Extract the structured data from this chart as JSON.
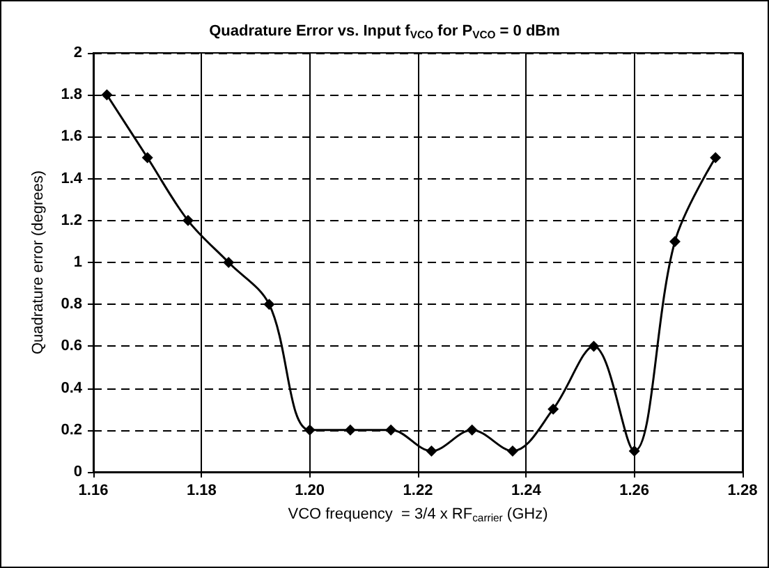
{
  "chart_data": {
    "type": "line",
    "title": "Quadrature Error vs. Input f$_{VCO}$ for P$_{VCO}$ = 0 dBm",
    "xlabel": "VCO frequency  = 3/4 x RF$_{carrier}$ (GHz)",
    "ylabel": "Quadrature error (degrees)",
    "x": [
      1.1625,
      1.17,
      1.1775,
      1.185,
      1.1925,
      1.2,
      1.2075,
      1.215,
      1.2225,
      1.23,
      1.2375,
      1.245,
      1.2525,
      1.26,
      1.2675,
      1.275
    ],
    "series": [
      {
        "color": "#000000",
        "values": [
          1.8,
          1.5,
          1.2,
          1.0,
          0.8,
          0.2,
          0.2,
          0.2,
          0.1,
          0.2,
          0.1,
          0.3,
          0.6,
          0.1,
          1.1,
          1.5
        ]
      }
    ],
    "xlim": [
      1.16,
      1.28
    ],
    "xticks": [
      {
        "value": 1.16,
        "label": "1.16"
      },
      {
        "value": 1.18,
        "label": "1.18"
      },
      {
        "value": 1.2,
        "label": "1.20"
      },
      {
        "value": 1.22,
        "label": "1.22"
      },
      {
        "value": 1.24,
        "label": "1.24"
      },
      {
        "value": 1.26,
        "label": "1.26"
      },
      {
        "value": 1.28,
        "label": "1.28"
      }
    ],
    "ylim": [
      0,
      2
    ],
    "yticks": [
      0,
      0.2,
      0.4,
      0.6,
      0.8,
      1,
      1.2,
      1.4,
      1.6,
      1.8,
      2
    ],
    "grid": true,
    "marker": "diamond",
    "line_style": "solid"
  }
}
